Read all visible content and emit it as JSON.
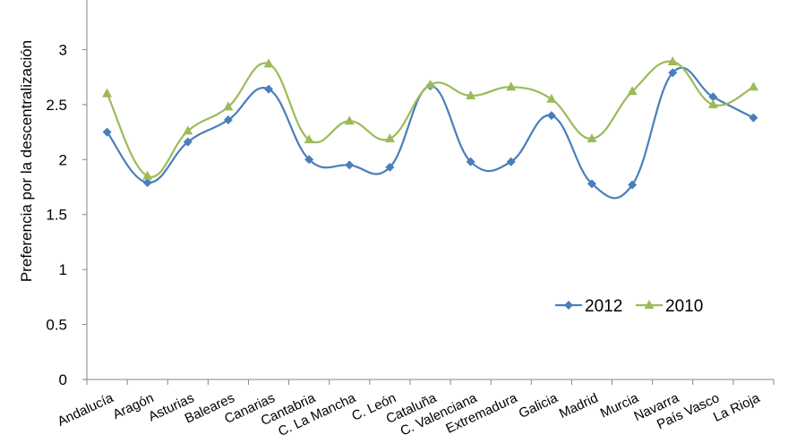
{
  "chart_data": {
    "type": "line",
    "title": "",
    "xlabel": "",
    "ylabel": "Preferencia por la descentralización",
    "ylim": [
      0,
      3.5
    ],
    "yticks": [
      "0",
      "0.5",
      "1",
      "1.5",
      "2",
      "2.5",
      "3",
      "3.5"
    ],
    "categories": [
      "Andalucía",
      "Aragón",
      "Asturias",
      "Baleares",
      "Canarias",
      "Cantabria",
      "C. La Mancha",
      "C. León",
      "Cataluña",
      "C. Valenciana",
      "Extremadura",
      "Galicia",
      "Madrid",
      "Murcia",
      "Navarra",
      "País Vasco",
      "La Rioja"
    ],
    "series": [
      {
        "name": "2012",
        "color": "#4a7ebb",
        "marker": "diamond",
        "values": [
          2.25,
          1.79,
          2.16,
          2.36,
          2.64,
          2.0,
          1.95,
          1.93,
          2.67,
          1.98,
          1.98,
          2.4,
          1.78,
          1.77,
          2.79,
          2.57,
          2.38
        ]
      },
      {
        "name": "2010",
        "color": "#9bbb59",
        "marker": "triangle",
        "values": [
          2.6,
          1.85,
          2.26,
          2.48,
          2.87,
          2.18,
          2.35,
          2.19,
          2.68,
          2.58,
          2.66,
          2.55,
          2.19,
          2.62,
          2.89,
          2.5,
          2.66
        ]
      }
    ],
    "legend": "center-right",
    "grid": false
  }
}
